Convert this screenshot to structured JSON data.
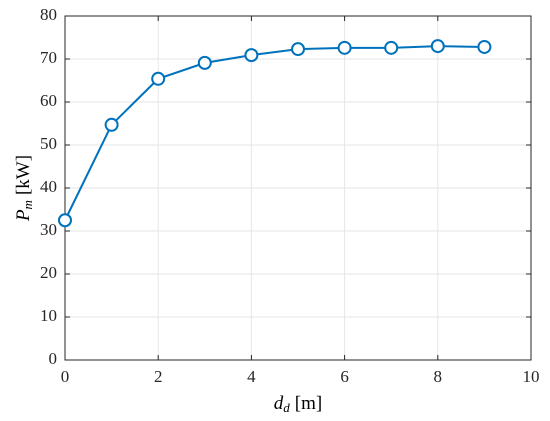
{
  "chart_data": {
    "type": "line",
    "xlabel": {
      "main": "d",
      "sub": "d",
      "unit": "[m]"
    },
    "ylabel": {
      "main": "P",
      "sub": "m",
      "unit": "[kW]"
    },
    "x": [
      0,
      1,
      2,
      3,
      4,
      5,
      6,
      7,
      8,
      9
    ],
    "series": [
      {
        "color": "#0072bd",
        "values": [
          32.5,
          54.7,
          65.4,
          69.1,
          70.9,
          72.3,
          72.6,
          72.6,
          73.0,
          72.8
        ]
      }
    ],
    "xlim": [
      0,
      10
    ],
    "xticks": [
      0,
      2,
      4,
      6,
      8,
      10
    ],
    "ylim": [
      0,
      80
    ],
    "yticks": [
      0,
      10,
      20,
      30,
      40,
      50,
      60,
      70,
      80
    ],
    "grid": true
  }
}
